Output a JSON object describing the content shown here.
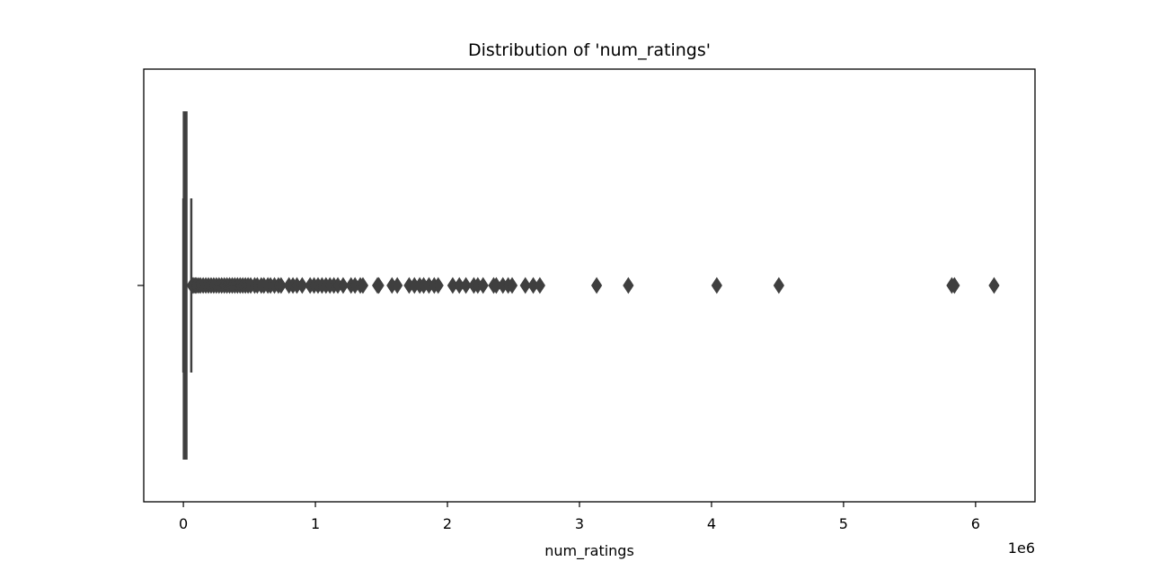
{
  "chart_data": {
    "type": "boxplot",
    "orientation": "horizontal",
    "title": "Distribution of 'num_ratings'",
    "xlabel": "num_ratings",
    "ylabel": "",
    "x_offset_label": "1e6",
    "x_scale_factor": 1000000,
    "xlim": [
      -300000,
      6450000
    ],
    "xticks": [
      0,
      1000000,
      2000000,
      3000000,
      4000000,
      5000000,
      6000000
    ],
    "xtick_labels": [
      "0",
      "1",
      "2",
      "3",
      "4",
      "5",
      "6"
    ],
    "box": {
      "whisker_low": 0,
      "q1": 2000,
      "median": 8000,
      "q3": 25000,
      "whisker_high": 60000
    },
    "outliers": [
      65000,
      70000,
      80000,
      90000,
      100000,
      115000,
      130000,
      150000,
      170000,
      190000,
      210000,
      230000,
      250000,
      270000,
      290000,
      310000,
      330000,
      350000,
      370000,
      390000,
      410000,
      430000,
      450000,
      470000,
      490000,
      510000,
      540000,
      560000,
      590000,
      610000,
      640000,
      660000,
      690000,
      720000,
      740000,
      800000,
      830000,
      860000,
      900000,
      960000,
      990000,
      1020000,
      1050000,
      1080000,
      1110000,
      1140000,
      1170000,
      1210000,
      1270000,
      1300000,
      1340000,
      1360000,
      1470000,
      1480000,
      1580000,
      1620000,
      1710000,
      1750000,
      1790000,
      1820000,
      1860000,
      1900000,
      1930000,
      2040000,
      2090000,
      2140000,
      2200000,
      2230000,
      2270000,
      2350000,
      2370000,
      2420000,
      2460000,
      2490000,
      2590000,
      2650000,
      2700000,
      3130000,
      3370000,
      4040000,
      4510000,
      5820000,
      5840000,
      6140000
    ],
    "colors": {
      "box_edge": "#3f3f3f",
      "box_fill": "#3f3f3f",
      "outlier": "#3f3f3f",
      "axes": "#000000"
    },
    "grid": false
  }
}
